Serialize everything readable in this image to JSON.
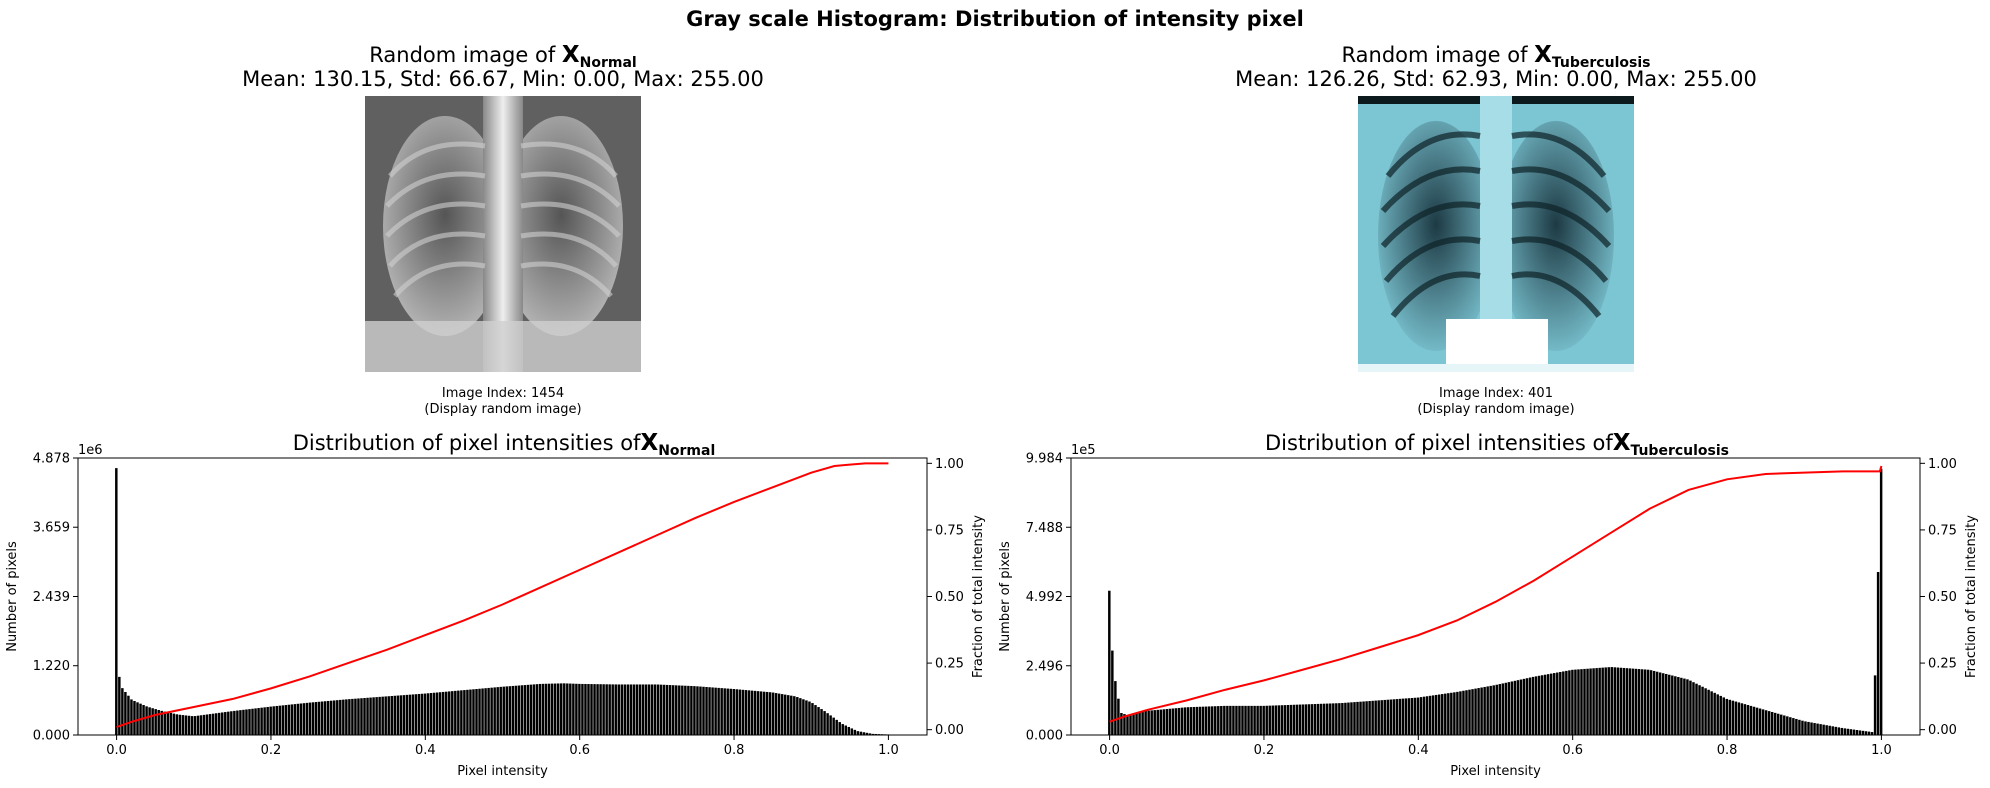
{
  "figure": {
    "suptitle": "Gray scale Histogram: Distribution of intensity pixel"
  },
  "panels": [
    {
      "class_base": "X",
      "class_sub": "Normal",
      "image_title_prefix": "Random image of ",
      "stats_line": "Mean:  130.15, Std:  66.67, Min:  0.00, Max:  255.00",
      "image_index_label": "Image Index: 1454",
      "image_note": "(Display random image)",
      "image_tint": "#9a9a9a",
      "hist_title_prefix": "Distribution of pixel intensities of"
    },
    {
      "class_base": "X",
      "class_sub": "Tuberculosis",
      "image_title_prefix": "Random image of ",
      "stats_line": "Mean:  126.26, Std:  62.93, Min:  0.00, Max:  255.00",
      "image_index_label": "Image Index: 401",
      "image_note": "(Display random image)",
      "image_tint": "#7cc5d3",
      "hist_title_prefix": "Distribution of pixel intensities of"
    }
  ],
  "chart_data": [
    {
      "type": "bar",
      "xlabel": "Pixel intensity",
      "ylabel": "Number of pixels",
      "ylabel2": "Fraction of total intensity",
      "y_scale_label": "1e6",
      "xlim": [
        -0.05,
        1.05
      ],
      "ylim": [
        0,
        4.878
      ],
      "y2lim": [
        -0.02,
        1.02
      ],
      "xticks": [
        "0.0",
        "0.2",
        "0.4",
        "0.6",
        "0.8",
        "1.0"
      ],
      "yticks": [
        "0.000",
        "1.220",
        "2.439",
        "3.659",
        "4.878"
      ],
      "y2ticks": [
        "0.00",
        "0.25",
        "0.50",
        "0.75",
        "1.00"
      ],
      "bar_color": "#000000",
      "line_color": "#ff0000",
      "hist_profile": {
        "x": [
          0.0,
          0.004,
          0.008,
          0.02,
          0.04,
          0.06,
          0.08,
          0.1,
          0.15,
          0.2,
          0.25,
          0.3,
          0.35,
          0.4,
          0.45,
          0.5,
          0.55,
          0.58,
          0.6,
          0.65,
          0.7,
          0.75,
          0.8,
          0.85,
          0.88,
          0.9,
          0.92,
          0.94,
          0.96,
          0.98,
          1.0
        ],
        "y": [
          4.7,
          0.95,
          0.82,
          0.62,
          0.5,
          0.42,
          0.36,
          0.33,
          0.42,
          0.5,
          0.57,
          0.63,
          0.68,
          0.73,
          0.79,
          0.85,
          0.9,
          0.91,
          0.9,
          0.89,
          0.89,
          0.86,
          0.81,
          0.75,
          0.68,
          0.58,
          0.4,
          0.2,
          0.07,
          0.02,
          0.01
        ]
      },
      "cumulative": {
        "x": [
          0.0,
          0.02,
          0.05,
          0.1,
          0.15,
          0.2,
          0.25,
          0.3,
          0.35,
          0.4,
          0.45,
          0.5,
          0.55,
          0.6,
          0.65,
          0.7,
          0.75,
          0.8,
          0.85,
          0.9,
          0.93,
          0.95,
          0.97,
          1.0
        ],
        "y": [
          0.01,
          0.03,
          0.055,
          0.085,
          0.115,
          0.155,
          0.2,
          0.25,
          0.3,
          0.355,
          0.41,
          0.47,
          0.535,
          0.6,
          0.665,
          0.73,
          0.795,
          0.855,
          0.91,
          0.965,
          0.99,
          0.995,
          1.0,
          1.0
        ]
      }
    },
    {
      "type": "bar",
      "xlabel": "Pixel intensity",
      "ylabel": "Number of pixels",
      "ylabel2": "Fraction of total intensity",
      "y_scale_label": "1e5",
      "xlim": [
        -0.05,
        1.05
      ],
      "ylim": [
        0,
        9.984
      ],
      "y2lim": [
        -0.02,
        1.02
      ],
      "xticks": [
        "0.0",
        "0.2",
        "0.4",
        "0.6",
        "0.8",
        "1.0"
      ],
      "yticks": [
        "0.000",
        "2.496",
        "4.992",
        "7.488",
        "9.984"
      ],
      "y2ticks": [
        "0.00",
        "0.25",
        "0.50",
        "0.75",
        "1.00"
      ],
      "bar_color": "#000000",
      "line_color": "#ff0000",
      "hist_profile": {
        "x": [
          0.0,
          0.004,
          0.008,
          0.015,
          0.025,
          0.04,
          0.06,
          0.1,
          0.15,
          0.2,
          0.25,
          0.3,
          0.35,
          0.4,
          0.45,
          0.5,
          0.55,
          0.6,
          0.65,
          0.7,
          0.75,
          0.8,
          0.85,
          0.9,
          0.95,
          0.99,
          1.0
        ],
        "y": [
          5.2,
          3.0,
          1.9,
          0.8,
          0.7,
          0.85,
          0.9,
          1.0,
          1.05,
          1.05,
          1.1,
          1.15,
          1.25,
          1.35,
          1.55,
          1.8,
          2.1,
          2.35,
          2.45,
          2.35,
          2.0,
          1.3,
          0.9,
          0.5,
          0.25,
          0.1,
          9.6
        ]
      },
      "cumulative": {
        "x": [
          0.0,
          0.02,
          0.05,
          0.1,
          0.15,
          0.2,
          0.25,
          0.3,
          0.35,
          0.4,
          0.45,
          0.5,
          0.55,
          0.6,
          0.65,
          0.7,
          0.75,
          0.8,
          0.85,
          0.9,
          0.95,
          0.998,
          1.0
        ],
        "y": [
          0.03,
          0.05,
          0.075,
          0.11,
          0.15,
          0.185,
          0.225,
          0.265,
          0.31,
          0.355,
          0.41,
          0.48,
          0.56,
          0.65,
          0.74,
          0.83,
          0.9,
          0.94,
          0.96,
          0.965,
          0.97,
          0.97,
          0.99
        ]
      }
    }
  ]
}
